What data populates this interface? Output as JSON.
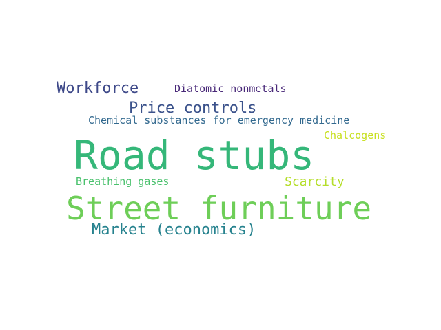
{
  "words": [
    {
      "text": "Road stubs",
      "color": "#35b779"
    },
    {
      "text": "Street furniture",
      "color": "#6ece58"
    },
    {
      "text": "Workforce",
      "color": "#3e4989"
    },
    {
      "text": "Price controls",
      "color": "#3b528b"
    },
    {
      "text": "Market (economics)",
      "color": "#26828e"
    },
    {
      "text": "Scarcity",
      "color": "#b5de2b"
    },
    {
      "text": "Diatomic nonmetals",
      "color": "#482878"
    },
    {
      "text": "Chemical substances for emergency medicine",
      "color": "#31688e"
    },
    {
      "text": "Chalcogens",
      "color": "#c8e020"
    },
    {
      "text": "Breathing gases",
      "color": "#4ac16d"
    }
  ]
}
